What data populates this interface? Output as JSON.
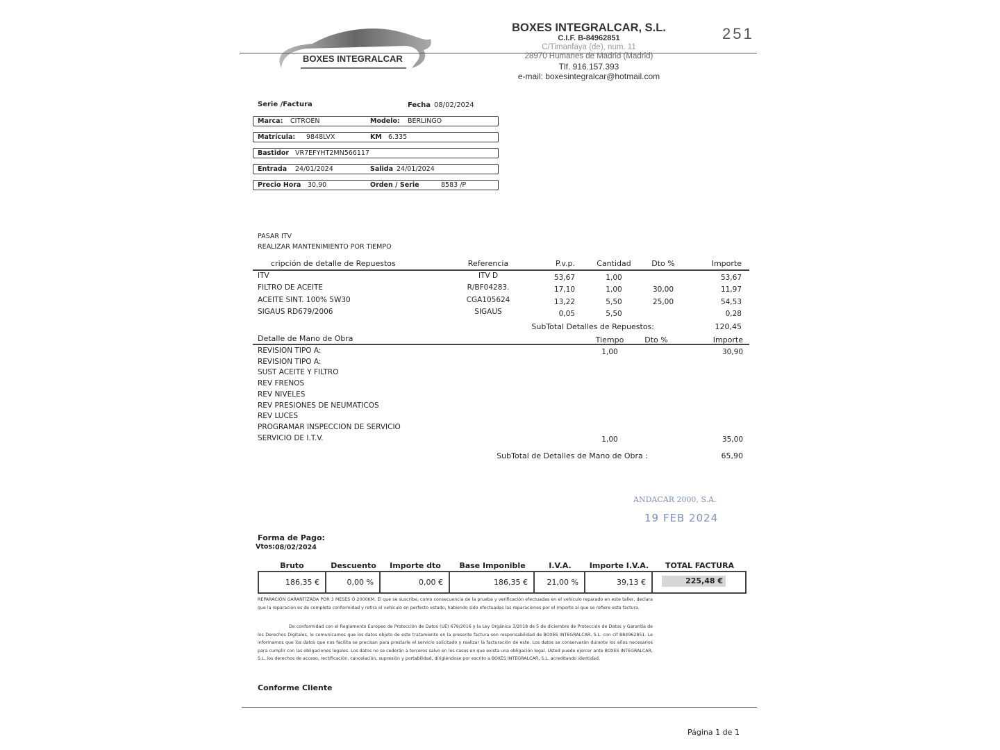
{
  "header": {
    "logo_text": "BOXES INTEGRALCAR",
    "company": "BOXES INTEGRALCAR, S.L.",
    "cif": "C.I.F. B-84962851",
    "address1": "C/Timanfaya (de), num. 11",
    "address2": "28970 Humanes de Madrid (Madrid)",
    "phone": "Tlf. 916.157.393",
    "email": "e-mail: boxesintegralcar@hotmail.com",
    "doc_number": "251"
  },
  "info": {
    "serie_label": "Serie /Factura",
    "fecha_label": "Fecha",
    "fecha": "08/02/2024",
    "marca_label": "Marca:",
    "marca": "CITROEN",
    "modelo_label": "Modelo:",
    "modelo": "BERLINGO",
    "matricula_label": "Matrícula:",
    "matricula": "9848LVX",
    "km_label": "KM",
    "km": "6.335",
    "bastidor_label": "Bastidor",
    "bastidor": "VR7EFYHT2MN566117",
    "entrada_label": "Entrada",
    "entrada": "24/01/2024",
    "salida_label": "Salida",
    "salida": "24/01/2024",
    "precio_label": "Precio Hora",
    "precio": "30,90",
    "orden_label": "Orden / Serie",
    "orden": "8583 /P"
  },
  "notes": [
    "PASAR ITV",
    "REALIZAR MANTENIMIENTO POR TIEMPO"
  ],
  "parts": {
    "headers": [
      "cripción de detalle de Repuestos",
      "Referencia",
      "P.v.p.",
      "Cantidad",
      "Dto %",
      "Importe"
    ],
    "rows": [
      [
        "ITV",
        "ITV D",
        "53,67",
        "1,00",
        "",
        "53,67"
      ],
      [
        "FILTRO DE ACEITE",
        "R/BF04283.",
        "17,10",
        "1,00",
        "30,00",
        "11,97"
      ],
      [
        "ACEITE SINT. 100% 5W30",
        "CGA105624",
        "13,22",
        "5,50",
        "25,00",
        "54,53"
      ],
      [
        "SIGAUS RD679/2006",
        "SIGAUS",
        "0,05",
        "5,50",
        "",
        "0,28"
      ]
    ],
    "subtotal_label": "SubTotal Detalles de Repuestos:",
    "subtotal": "120,45"
  },
  "labor": {
    "headers": [
      "Detalle de Mano de Obra",
      "Tiempo",
      "Dto %",
      "Importe"
    ],
    "rows": [
      [
        "REVISION TIPO A:",
        "1,00",
        "",
        "30,90"
      ],
      [
        "REVISION TIPO A:",
        "",
        "",
        ""
      ],
      [
        "SUST ACEITE Y FILTRO",
        "",
        "",
        ""
      ],
      [
        "REV FRENOS",
        "",
        "",
        ""
      ],
      [
        "REV NIVELES",
        "",
        "",
        ""
      ],
      [
        "REV PRESIONES DE NEUMATICOS",
        "",
        "",
        ""
      ],
      [
        "REV LUCES",
        "",
        "",
        ""
      ],
      [
        "PROGRAMAR INSPECCION DE SERVICIO",
        "",
        "",
        ""
      ],
      [
        "SERVICIO DE I.T.V.",
        "1,00",
        "",
        "35,00"
      ]
    ],
    "subtotal_label": "SubTotal de Detalles de Mano de Obra :",
    "subtotal": "65,90"
  },
  "stamp": {
    "line1": "ANDACAR 2000, S.A.",
    "line2": "19 FEB 2024",
    "color": "#7d8fbf"
  },
  "payment": {
    "forma_label": "Forma de Pago:",
    "vtos_label": "Vtos:",
    "vtos": "08/02/2024"
  },
  "totals": {
    "headers": [
      "Bruto",
      "Descuento",
      "Importe dto",
      "Base Imponible",
      "I.V.A.",
      "Importe I.V.A.",
      "TOTAL FACTURA"
    ],
    "values": [
      "186,35 €",
      "0,00  %",
      "0,00 €",
      "186,35  €",
      "21,00 %",
      "39,13  €",
      "225,48 €"
    ]
  },
  "legal": {
    "p1": "REPARACIÓN GARANTIZADA POR 3 MESES Ó 2000KM. El que se suscribe, como consecuencia de la prueba y verificación efectuadas en el vehículo reparado en este taller, declara que la reparación es de completa conformidad y retira el vehículo en perfecto estado, habiendo sido efectuadas las reparaciones por el importe al que se refiere esta factura.",
    "p2": "De conformidad con el Reglamento Europeo de Protección de Datos (UE) 679/2016 y la Ley Orgánica 3/2018 de 5 de diciembre de Protección de Datos y Garantía de los Derechos Digitales, le comunicamos que los datos objeto de este tratamiento en la presente factura son responsabilidad de BOXES INTEGRALCAR, S.L. con cif B84962851. Le informamos que los datos que nos facilita se precisan para prestarle el servicio solicitado y realizar la facturación de este. Los datos se conservarán durante los años necesarios para cumplir con las obligaciones legales. Los datos no se cederán a terceros salvo en los casos en que exista una obligación legal. Usted puede ejercer ante BOXES INTEGRALCAR, S.L. los derechos de acceso, rectificación, cancelación, supresión y portabilidad, dirigiéndose por escrito a BOXES INTEGRALCAR, S.L. acreditando identidad."
  },
  "footer": {
    "conforme": "Conforme Cliente",
    "page": "Página 1 de 1"
  }
}
